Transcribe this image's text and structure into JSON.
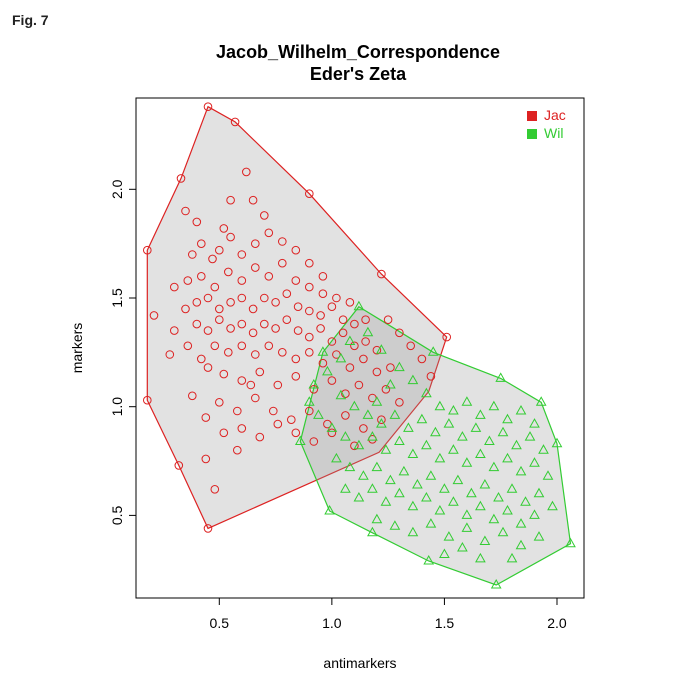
{
  "figure_label": "Fig. 7",
  "chart_data": {
    "type": "scatter",
    "title": "Jacob_Wilhelm_Correspondence",
    "subtitle": "Eder's Zeta",
    "xlabel": "antimarkers",
    "ylabel": "markers",
    "xlim": [
      0.13,
      2.12
    ],
    "ylim": [
      0.12,
      2.42
    ],
    "xticks": [
      "0.5",
      "1.0",
      "1.5",
      "2.0"
    ],
    "xtick_values": [
      0.5,
      1.0,
      1.5,
      2.0
    ],
    "yticks": [
      "0.5",
      "1.0",
      "1.5",
      "2.0"
    ],
    "ytick_values": [
      0.5,
      1.0,
      1.5,
      2.0
    ],
    "grid": false,
    "legend_position": "top-right",
    "series": [
      {
        "name": "Jac",
        "marker": "circle",
        "color": "#dd2222",
        "hull": [
          [
            0.45,
            2.38
          ],
          [
            0.57,
            2.31
          ],
          [
            0.9,
            1.98
          ],
          [
            1.22,
            1.61
          ],
          [
            1.51,
            1.32
          ],
          [
            1.43,
            1.07
          ],
          [
            1.21,
            0.79
          ],
          [
            0.45,
            0.44
          ],
          [
            0.32,
            0.73
          ],
          [
            0.18,
            1.03
          ],
          [
            0.18,
            1.72
          ],
          [
            0.33,
            2.05
          ]
        ],
        "points": [
          [
            0.45,
            2.38
          ],
          [
            0.57,
            2.31
          ],
          [
            0.9,
            1.98
          ],
          [
            0.33,
            2.05
          ],
          [
            0.18,
            1.72
          ],
          [
            0.18,
            1.03
          ],
          [
            0.32,
            0.73
          ],
          [
            0.45,
            0.44
          ],
          [
            1.51,
            1.32
          ],
          [
            1.22,
            1.61
          ],
          [
            0.21,
            1.42
          ],
          [
            0.28,
            1.24
          ],
          [
            0.48,
            0.62
          ],
          [
            0.44,
            0.76
          ],
          [
            0.62,
            2.08
          ],
          [
            0.52,
            1.82
          ],
          [
            0.55,
            1.95
          ],
          [
            0.65,
            1.95
          ],
          [
            0.7,
            1.88
          ],
          [
            0.4,
            1.85
          ],
          [
            0.35,
            1.9
          ],
          [
            0.38,
            1.7
          ],
          [
            0.42,
            1.75
          ],
          [
            0.47,
            1.68
          ],
          [
            0.5,
            1.72
          ],
          [
            0.55,
            1.78
          ],
          [
            0.6,
            1.7
          ],
          [
            0.66,
            1.75
          ],
          [
            0.72,
            1.8
          ],
          [
            0.78,
            1.76
          ],
          [
            0.84,
            1.72
          ],
          [
            0.9,
            1.66
          ],
          [
            0.96,
            1.6
          ],
          [
            0.3,
            1.55
          ],
          [
            0.36,
            1.58
          ],
          [
            0.42,
            1.6
          ],
          [
            0.48,
            1.55
          ],
          [
            0.54,
            1.62
          ],
          [
            0.6,
            1.58
          ],
          [
            0.66,
            1.64
          ],
          [
            0.72,
            1.6
          ],
          [
            0.78,
            1.66
          ],
          [
            0.84,
            1.58
          ],
          [
            0.9,
            1.55
          ],
          [
            0.96,
            1.52
          ],
          [
            1.02,
            1.5
          ],
          [
            1.08,
            1.48
          ],
          [
            0.35,
            1.45
          ],
          [
            0.4,
            1.48
          ],
          [
            0.45,
            1.5
          ],
          [
            0.5,
            1.45
          ],
          [
            0.55,
            1.48
          ],
          [
            0.6,
            1.5
          ],
          [
            0.65,
            1.45
          ],
          [
            0.7,
            1.5
          ],
          [
            0.75,
            1.48
          ],
          [
            0.8,
            1.52
          ],
          [
            0.85,
            1.46
          ],
          [
            0.9,
            1.44
          ],
          [
            0.95,
            1.42
          ],
          [
            1.0,
            1.46
          ],
          [
            1.05,
            1.4
          ],
          [
            1.1,
            1.38
          ],
          [
            1.15,
            1.4
          ],
          [
            0.4,
            1.38
          ],
          [
            0.45,
            1.35
          ],
          [
            0.5,
            1.4
          ],
          [
            0.55,
            1.36
          ],
          [
            0.6,
            1.38
          ],
          [
            0.65,
            1.34
          ],
          [
            0.7,
            1.38
          ],
          [
            0.75,
            1.36
          ],
          [
            0.8,
            1.4
          ],
          [
            0.85,
            1.35
          ],
          [
            0.9,
            1.32
          ],
          [
            0.95,
            1.36
          ],
          [
            1.0,
            1.3
          ],
          [
            1.05,
            1.34
          ],
          [
            1.1,
            1.28
          ],
          [
            1.15,
            1.3
          ],
          [
            1.2,
            1.26
          ],
          [
            0.48,
            1.28
          ],
          [
            0.54,
            1.25
          ],
          [
            0.6,
            1.28
          ],
          [
            0.66,
            1.24
          ],
          [
            0.72,
            1.28
          ],
          [
            0.78,
            1.25
          ],
          [
            0.84,
            1.22
          ],
          [
            0.9,
            1.25
          ],
          [
            0.96,
            1.2
          ],
          [
            1.02,
            1.24
          ],
          [
            1.08,
            1.18
          ],
          [
            1.14,
            1.22
          ],
          [
            1.2,
            1.16
          ],
          [
            1.26,
            1.18
          ],
          [
            0.45,
            1.18
          ],
          [
            0.52,
            1.15
          ],
          [
            0.6,
            1.12
          ],
          [
            0.68,
            1.16
          ],
          [
            0.76,
            1.1
          ],
          [
            0.84,
            1.14
          ],
          [
            0.92,
            1.08
          ],
          [
            1.0,
            1.12
          ],
          [
            1.06,
            1.06
          ],
          [
            1.12,
            1.1
          ],
          [
            1.18,
            1.04
          ],
          [
            1.24,
            1.08
          ],
          [
            1.3,
            1.02
          ],
          [
            0.5,
            1.02
          ],
          [
            0.58,
            0.98
          ],
          [
            0.66,
            1.04
          ],
          [
            0.74,
            0.98
          ],
          [
            0.82,
            0.94
          ],
          [
            0.9,
            0.98
          ],
          [
            0.98,
            0.92
          ],
          [
            1.06,
            0.96
          ],
          [
            1.14,
            0.9
          ],
          [
            1.22,
            0.94
          ],
          [
            0.6,
            0.9
          ],
          [
            0.68,
            0.86
          ],
          [
            0.76,
            0.92
          ],
          [
            0.84,
            0.88
          ],
          [
            0.92,
            0.84
          ],
          [
            1.0,
            0.88
          ],
          [
            1.1,
            0.82
          ],
          [
            1.18,
            0.85
          ],
          [
            0.3,
            1.35
          ],
          [
            0.36,
            1.28
          ],
          [
            0.42,
            1.22
          ],
          [
            0.38,
            1.05
          ],
          [
            0.44,
            0.95
          ],
          [
            0.52,
            0.88
          ],
          [
            0.58,
            0.8
          ],
          [
            0.64,
            1.1
          ],
          [
            1.25,
            1.4
          ],
          [
            1.3,
            1.34
          ],
          [
            1.35,
            1.28
          ],
          [
            1.4,
            1.22
          ],
          [
            1.44,
            1.14
          ]
        ]
      },
      {
        "name": "Wil",
        "marker": "triangle",
        "color": "#33cc33",
        "hull": [
          [
            1.12,
            1.46
          ],
          [
            1.45,
            1.25
          ],
          [
            1.75,
            1.13
          ],
          [
            1.93,
            1.02
          ],
          [
            2.0,
            0.83
          ],
          [
            2.06,
            0.37
          ],
          [
            1.73,
            0.18
          ],
          [
            1.43,
            0.29
          ],
          [
            1.18,
            0.42
          ],
          [
            0.99,
            0.52
          ],
          [
            0.86,
            0.84
          ],
          [
            0.96,
            1.25
          ]
        ],
        "points": [
          [
            1.12,
            1.46
          ],
          [
            1.45,
            1.25
          ],
          [
            1.75,
            1.13
          ],
          [
            1.93,
            1.02
          ],
          [
            2.0,
            0.83
          ],
          [
            2.06,
            0.37
          ],
          [
            1.73,
            0.18
          ],
          [
            0.99,
            0.52
          ],
          [
            0.86,
            0.84
          ],
          [
            0.96,
            1.25
          ],
          [
            1.43,
            0.29
          ],
          [
            1.18,
            0.42
          ],
          [
            1.3,
            1.18
          ],
          [
            1.36,
            1.12
          ],
          [
            1.42,
            1.06
          ],
          [
            1.48,
            1.0
          ],
          [
            1.54,
            0.98
          ],
          [
            1.6,
            1.02
          ],
          [
            1.66,
            0.96
          ],
          [
            1.72,
            1.0
          ],
          [
            1.78,
            0.94
          ],
          [
            1.84,
            0.98
          ],
          [
            1.9,
            0.92
          ],
          [
            1.04,
            1.05
          ],
          [
            1.1,
            1.0
          ],
          [
            1.16,
            0.96
          ],
          [
            1.22,
            0.92
          ],
          [
            1.28,
            0.96
          ],
          [
            1.34,
            0.9
          ],
          [
            1.4,
            0.94
          ],
          [
            1.46,
            0.88
          ],
          [
            1.52,
            0.92
          ],
          [
            1.58,
            0.86
          ],
          [
            1.64,
            0.9
          ],
          [
            1.7,
            0.84
          ],
          [
            1.76,
            0.88
          ],
          [
            1.82,
            0.82
          ],
          [
            1.88,
            0.86
          ],
          [
            1.94,
            0.8
          ],
          [
            1.0,
            0.9
          ],
          [
            1.06,
            0.86
          ],
          [
            1.12,
            0.82
          ],
          [
            1.18,
            0.86
          ],
          [
            1.24,
            0.8
          ],
          [
            1.3,
            0.84
          ],
          [
            1.36,
            0.78
          ],
          [
            1.42,
            0.82
          ],
          [
            1.48,
            0.76
          ],
          [
            1.54,
            0.8
          ],
          [
            1.6,
            0.74
          ],
          [
            1.66,
            0.78
          ],
          [
            1.72,
            0.72
          ],
          [
            1.78,
            0.76
          ],
          [
            1.84,
            0.7
          ],
          [
            1.9,
            0.74
          ],
          [
            1.96,
            0.68
          ],
          [
            1.02,
            0.76
          ],
          [
            1.08,
            0.72
          ],
          [
            1.14,
            0.68
          ],
          [
            1.2,
            0.72
          ],
          [
            1.26,
            0.66
          ],
          [
            1.32,
            0.7
          ],
          [
            1.38,
            0.64
          ],
          [
            1.44,
            0.68
          ],
          [
            1.5,
            0.62
          ],
          [
            1.56,
            0.66
          ],
          [
            1.62,
            0.6
          ],
          [
            1.68,
            0.64
          ],
          [
            1.74,
            0.58
          ],
          [
            1.8,
            0.62
          ],
          [
            1.86,
            0.56
          ],
          [
            1.92,
            0.6
          ],
          [
            1.98,
            0.54
          ],
          [
            1.06,
            0.62
          ],
          [
            1.12,
            0.58
          ],
          [
            1.18,
            0.62
          ],
          [
            1.24,
            0.56
          ],
          [
            1.3,
            0.6
          ],
          [
            1.36,
            0.54
          ],
          [
            1.42,
            0.58
          ],
          [
            1.48,
            0.52
          ],
          [
            1.54,
            0.56
          ],
          [
            1.6,
            0.5
          ],
          [
            1.66,
            0.54
          ],
          [
            1.72,
            0.48
          ],
          [
            1.78,
            0.52
          ],
          [
            1.84,
            0.46
          ],
          [
            1.9,
            0.5
          ],
          [
            1.2,
            0.48
          ],
          [
            1.28,
            0.45
          ],
          [
            1.36,
            0.42
          ],
          [
            1.44,
            0.46
          ],
          [
            1.52,
            0.4
          ],
          [
            1.6,
            0.44
          ],
          [
            1.68,
            0.38
          ],
          [
            1.76,
            0.42
          ],
          [
            1.84,
            0.36
          ],
          [
            1.92,
            0.4
          ],
          [
            1.5,
            0.32
          ],
          [
            1.58,
            0.35
          ],
          [
            1.66,
            0.3
          ],
          [
            1.8,
            0.3
          ],
          [
            0.92,
            1.1
          ],
          [
            0.98,
            1.16
          ],
          [
            1.04,
            1.22
          ],
          [
            1.08,
            1.3
          ],
          [
            1.16,
            1.34
          ],
          [
            1.22,
            1.26
          ],
          [
            1.26,
            1.1
          ],
          [
            1.2,
            1.02
          ],
          [
            0.94,
            0.96
          ],
          [
            0.9,
            1.02
          ]
        ]
      }
    ]
  }
}
